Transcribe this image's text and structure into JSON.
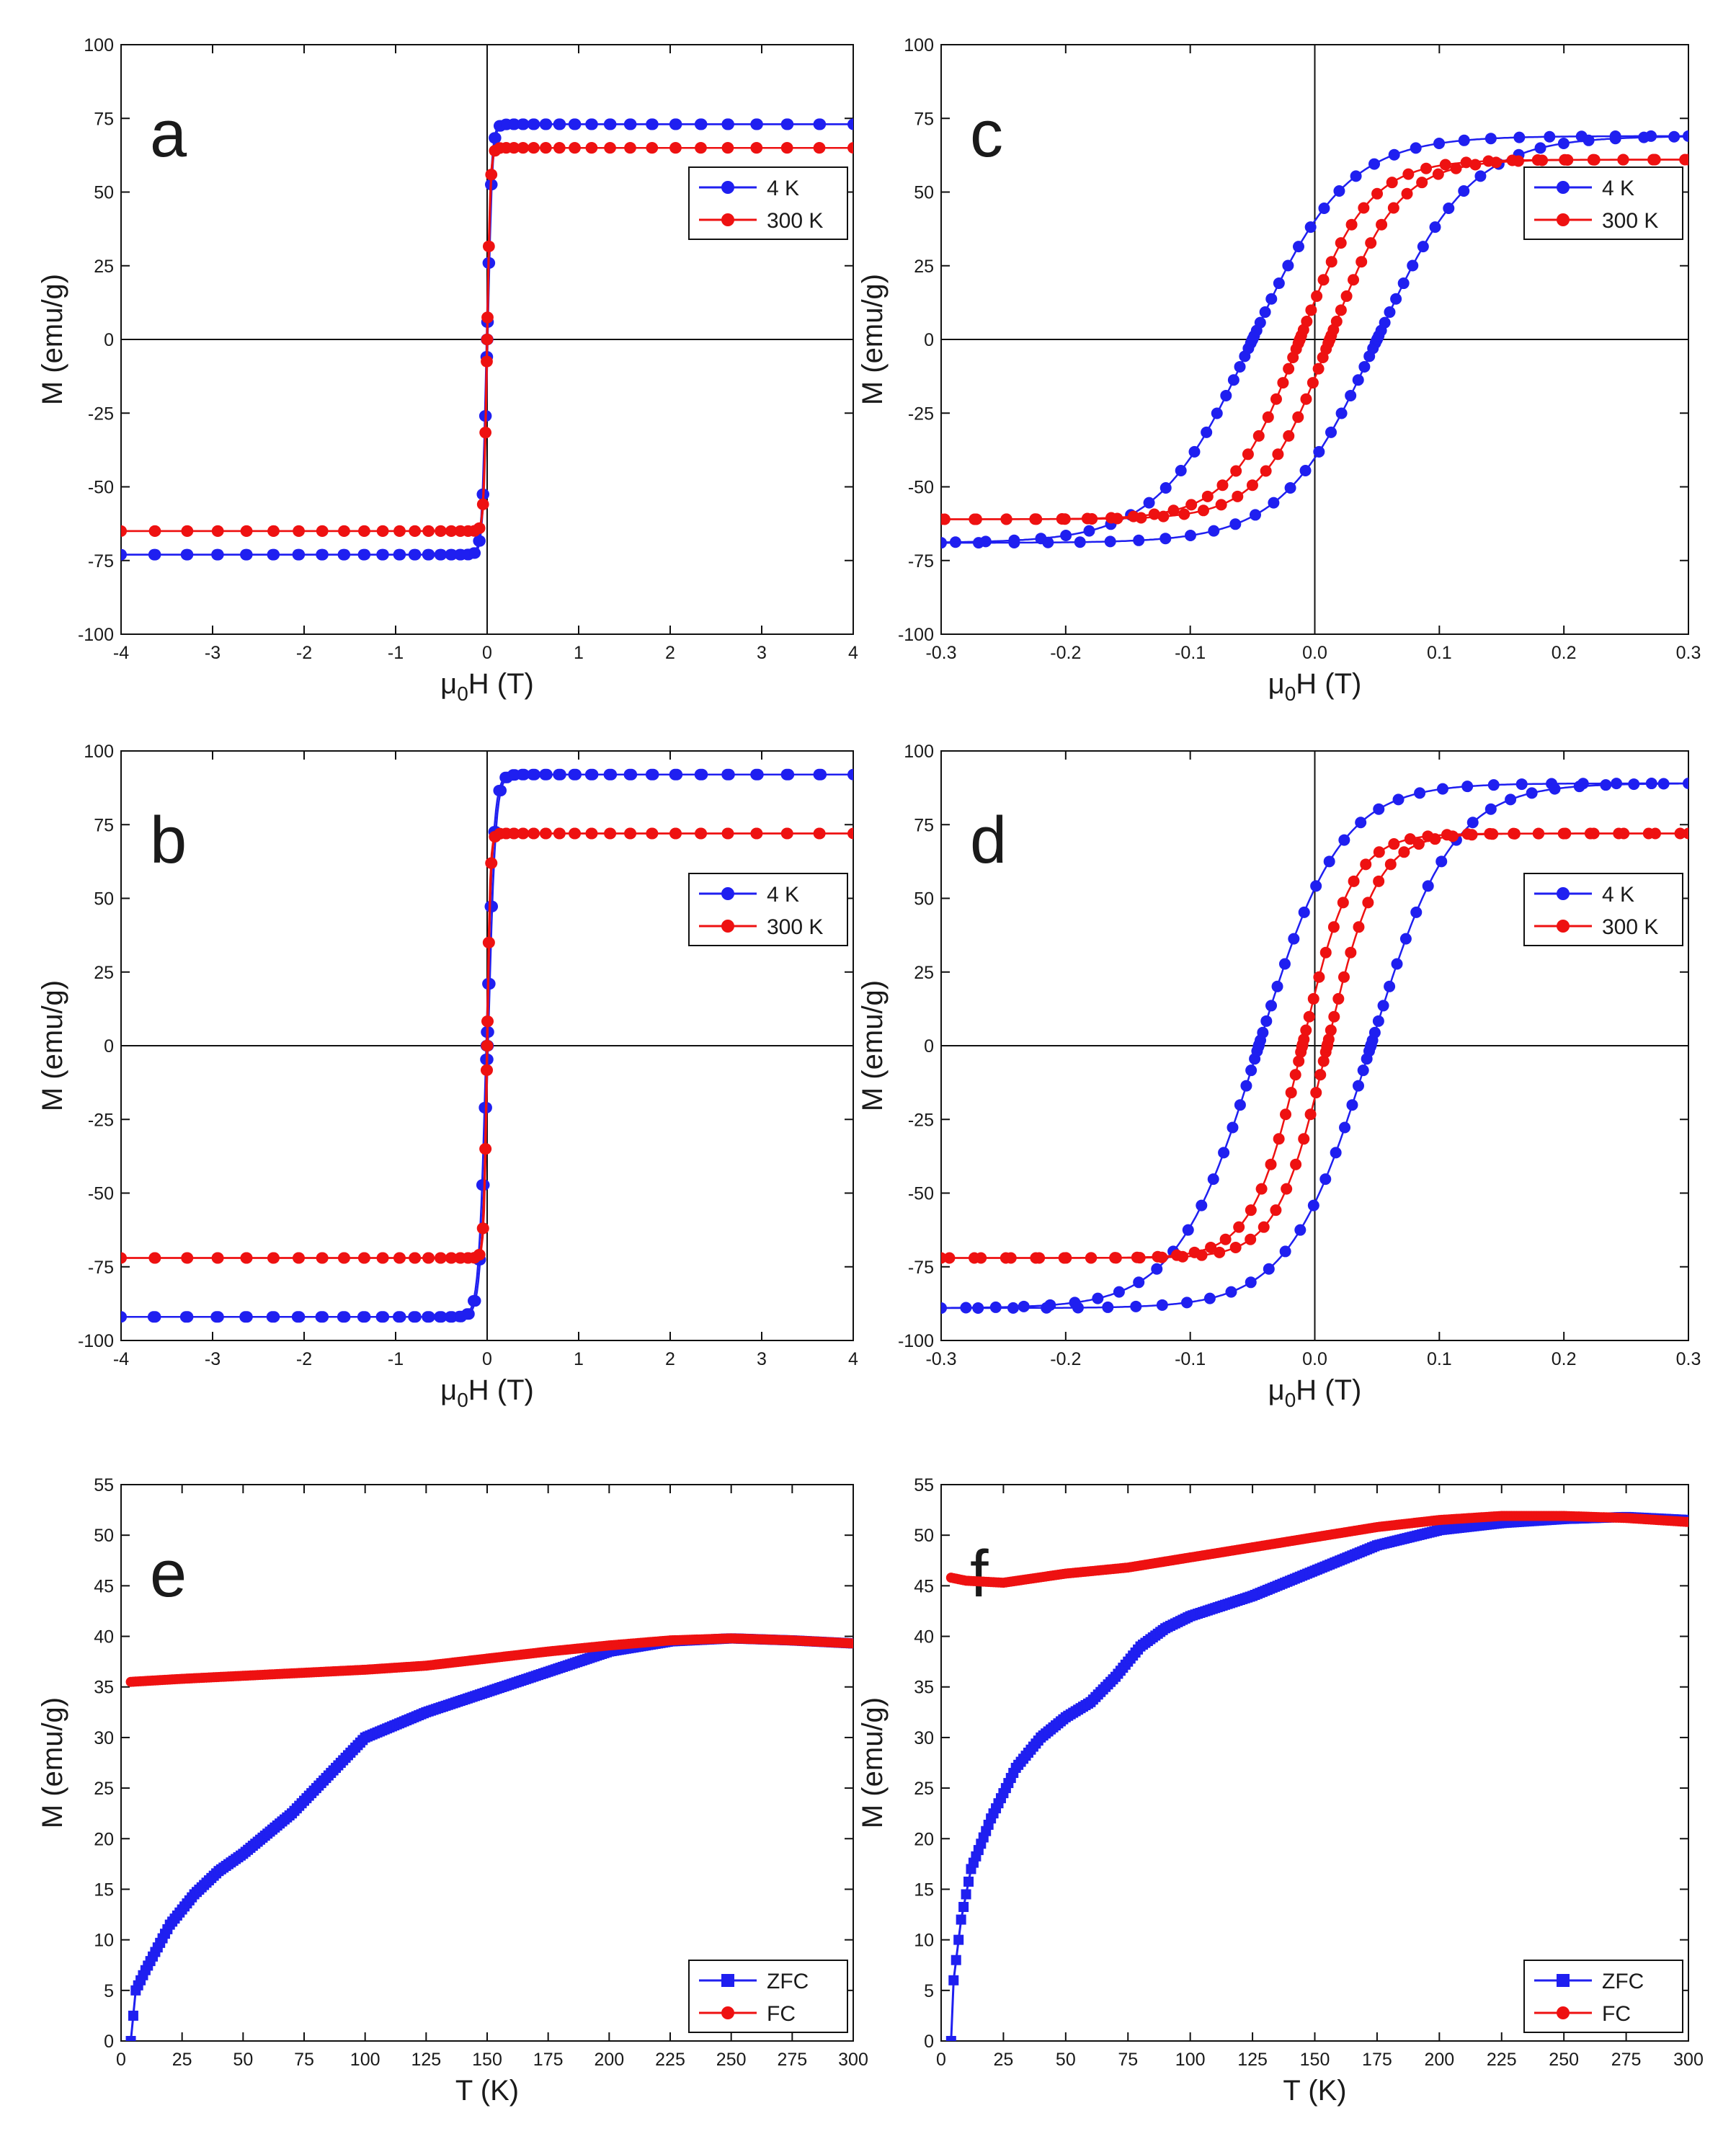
{
  "colors": {
    "blue": "#1f1ff0",
    "red": "#ee1111",
    "axis": "#111111"
  },
  "chart_data": [
    {
      "id": "a",
      "type": "line",
      "letter": "a",
      "xlabel": "μ0H (T)",
      "ylabel": "M (emu/g)",
      "xlim": [
        -4,
        4
      ],
      "ylim": [
        -100,
        100
      ],
      "xticks": [
        -4,
        -3,
        -2,
        -1,
        0,
        1,
        2,
        3,
        4
      ],
      "xtick_labels": [
        "-4",
        "-3",
        "-2",
        "-1",
        "0",
        "1",
        "2",
        "3",
        "4"
      ],
      "yticks": [
        -100,
        -75,
        -50,
        -25,
        0,
        25,
        50,
        75,
        100
      ],
      "ytick_labels": [
        "-100",
        "-75",
        "-50",
        "-25",
        "0",
        "25",
        "50",
        "75",
        "100"
      ],
      "zero_lines": true,
      "legend_position": "top-right",
      "series": [
        {
          "name": "4 K",
          "color": "blue",
          "marker": "circle",
          "curve": "hysteresis",
          "Ms": 73,
          "Hc": 0.006,
          "w": 0.05,
          "pts": 23
        },
        {
          "name": "300 K",
          "color": "red",
          "marker": "circle",
          "curve": "hysteresis",
          "Ms": 65,
          "Hc": 0.003,
          "w": 0.035,
          "pts": 23
        }
      ]
    },
    {
      "id": "b",
      "type": "line",
      "letter": "b",
      "xlabel": "μ0H (T)",
      "ylabel": "M (emu/g)",
      "xlim": [
        -4,
        4
      ],
      "ylim": [
        -100,
        100
      ],
      "xticks": [
        -4,
        -3,
        -2,
        -1,
        0,
        1,
        2,
        3,
        4
      ],
      "xtick_labels": [
        "-4",
        "-3",
        "-2",
        "-1",
        "0",
        "1",
        "2",
        "3",
        "4"
      ],
      "yticks": [
        -100,
        -75,
        -50,
        -25,
        0,
        25,
        50,
        75,
        100
      ],
      "ytick_labels": [
        "-100",
        "-75",
        "-50",
        "-25",
        "0",
        "25",
        "50",
        "75",
        "100"
      ],
      "zero_lines": true,
      "legend_position": "top-right",
      "series": [
        {
          "name": "4 K",
          "color": "blue",
          "marker": "circle",
          "curve": "hysteresis",
          "Ms": 92,
          "Hc": 0.01,
          "w": 0.08,
          "pts": 23
        },
        {
          "name": "300 K",
          "color": "red",
          "marker": "circle",
          "curve": "hysteresis",
          "Ms": 72,
          "Hc": 0.004,
          "w": 0.035,
          "pts": 23
        }
      ]
    },
    {
      "id": "c",
      "type": "line",
      "letter": "c",
      "xlabel": "μ0H (T)",
      "ylabel": "M (emu/g)",
      "xlim": [
        -0.3,
        0.3
      ],
      "ylim": [
        -100,
        100
      ],
      "xticks": [
        -0.3,
        -0.2,
        -0.1,
        0.0,
        0.1,
        0.2,
        0.3
      ],
      "xtick_labels": [
        "-0.3",
        "-0.2",
        "-0.1",
        "0.0",
        "0.1",
        "0.2",
        "0.3"
      ],
      "yticks": [
        -100,
        -75,
        -50,
        -25,
        0,
        25,
        50,
        75,
        100
      ],
      "ytick_labels": [
        "-100",
        "-75",
        "-50",
        "-25",
        "0",
        "25",
        "50",
        "75",
        "100"
      ],
      "zero_lines": true,
      "legend_position": "top-right",
      "series": [
        {
          "name": "4 K",
          "color": "blue",
          "marker": "circle",
          "curve": "hysteresis",
          "Ms": 69,
          "Hc": 0.05,
          "w": 0.075,
          "pts": 25
        },
        {
          "name": "300 K",
          "color": "red",
          "marker": "circle",
          "curve": "hysteresis",
          "Ms": 61,
          "Hc": 0.012,
          "w": 0.055,
          "pts": 25
        }
      ]
    },
    {
      "id": "d",
      "type": "line",
      "letter": "d",
      "xlabel": "μ0H (T)",
      "ylabel": "M (emu/g)",
      "xlim": [
        -0.3,
        0.3
      ],
      "ylim": [
        -100,
        100
      ],
      "xticks": [
        -0.3,
        -0.2,
        -0.1,
        0.0,
        0.1,
        0.2,
        0.3
      ],
      "xtick_labels": [
        "-0.3",
        "-0.2",
        "-0.1",
        "0.0",
        "0.1",
        "0.2",
        "0.3"
      ],
      "yticks": [
        -100,
        -75,
        -50,
        -25,
        0,
        25,
        50,
        75,
        100
      ],
      "ytick_labels": [
        "-100",
        "-75",
        "-50",
        "-25",
        "0",
        "25",
        "50",
        "75",
        "100"
      ],
      "zero_lines": true,
      "legend_position": "top-right",
      "series": [
        {
          "name": "4 K",
          "color": "blue",
          "marker": "circle",
          "curve": "hysteresis",
          "Ms": 89,
          "Hc": 0.045,
          "w": 0.065,
          "pts": 25
        },
        {
          "name": "300 K",
          "color": "red",
          "marker": "circle",
          "curve": "hysteresis",
          "Ms": 72,
          "Hc": 0.01,
          "w": 0.04,
          "pts": 25
        }
      ]
    },
    {
      "id": "e",
      "type": "line",
      "letter": "e",
      "xlabel": "T (K)",
      "ylabel": "M (emu/g)",
      "xlim": [
        0,
        300
      ],
      "ylim": [
        0,
        55
      ],
      "xticks": [
        0,
        25,
        50,
        75,
        100,
        125,
        150,
        175,
        200,
        225,
        250,
        275,
        300
      ],
      "xtick_labels": [
        "0",
        "25",
        "50",
        "75",
        "100",
        "125",
        "150",
        "175",
        "200",
        "225",
        "250",
        "275",
        "300"
      ],
      "yticks": [
        0,
        5,
        10,
        15,
        20,
        25,
        30,
        35,
        40,
        45,
        50,
        55
      ],
      "ytick_labels": [
        "0",
        "5",
        "10",
        "15",
        "20",
        "25",
        "30",
        "35",
        "40",
        "45",
        "50",
        "55"
      ],
      "zero_lines": false,
      "legend_position": "bottom-right",
      "series": [
        {
          "name": "ZFC",
          "color": "blue",
          "marker": "square",
          "curve": "dense",
          "x": [
            4,
            6,
            10,
            20,
            30,
            40,
            50,
            60,
            70,
            80,
            90,
            100,
            110,
            125,
            150,
            175,
            200,
            225,
            250,
            275,
            300
          ],
          "y": [
            0,
            5,
            7,
            11.5,
            14.5,
            16.8,
            18.5,
            20.5,
            22.5,
            25,
            27.5,
            30,
            31,
            32.5,
            34.5,
            36.5,
            38.5,
            39.5,
            39.8,
            39.6,
            39.3
          ]
        },
        {
          "name": "FC",
          "color": "red",
          "marker": "circle",
          "curve": "dense",
          "x": [
            4,
            25,
            50,
            75,
            100,
            125,
            150,
            175,
            200,
            225,
            250,
            275,
            300
          ],
          "y": [
            35.5,
            35.8,
            36.1,
            36.4,
            36.7,
            37.1,
            37.8,
            38.5,
            39.1,
            39.6,
            39.8,
            39.6,
            39.3
          ]
        }
      ]
    },
    {
      "id": "f",
      "type": "line",
      "letter": "f",
      "xlabel": "T (K)",
      "ylabel": "M (emu/g)",
      "xlim": [
        0,
        300
      ],
      "ylim": [
        0,
        55
      ],
      "xticks": [
        0,
        25,
        50,
        75,
        100,
        125,
        150,
        175,
        200,
        225,
        250,
        275,
        300
      ],
      "xtick_labels": [
        "0",
        "25",
        "50",
        "75",
        "100",
        "125",
        "150",
        "175",
        "200",
        "225",
        "250",
        "275",
        "300"
      ],
      "yticks": [
        0,
        5,
        10,
        15,
        20,
        25,
        30,
        35,
        40,
        45,
        50,
        55
      ],
      "ytick_labels": [
        "0",
        "5",
        "10",
        "15",
        "20",
        "25",
        "30",
        "35",
        "40",
        "45",
        "50",
        "55"
      ],
      "zero_lines": false,
      "legend_position": "bottom-right",
      "series": [
        {
          "name": "ZFC",
          "color": "blue",
          "marker": "square",
          "curve": "dense",
          "x": [
            4,
            5,
            8,
            12,
            20,
            30,
            40,
            50,
            60,
            70,
            80,
            90,
            100,
            125,
            150,
            175,
            200,
            225,
            250,
            275,
            300
          ],
          "y": [
            0,
            6,
            12,
            17,
            22,
            27,
            30,
            32,
            33.5,
            36,
            39,
            40.8,
            42,
            44,
            46.5,
            49,
            50.5,
            51.2,
            51.6,
            51.8,
            51.5
          ]
        },
        {
          "name": "FC",
          "color": "red",
          "marker": "circle",
          "curve": "dense",
          "x": [
            4,
            10,
            25,
            50,
            75,
            100,
            125,
            150,
            175,
            200,
            225,
            250,
            275,
            300
          ],
          "y": [
            45.8,
            45.5,
            45.3,
            46.2,
            46.8,
            47.8,
            48.8,
            49.8,
            50.8,
            51.5,
            51.9,
            51.9,
            51.7,
            51.3
          ]
        }
      ]
    }
  ]
}
